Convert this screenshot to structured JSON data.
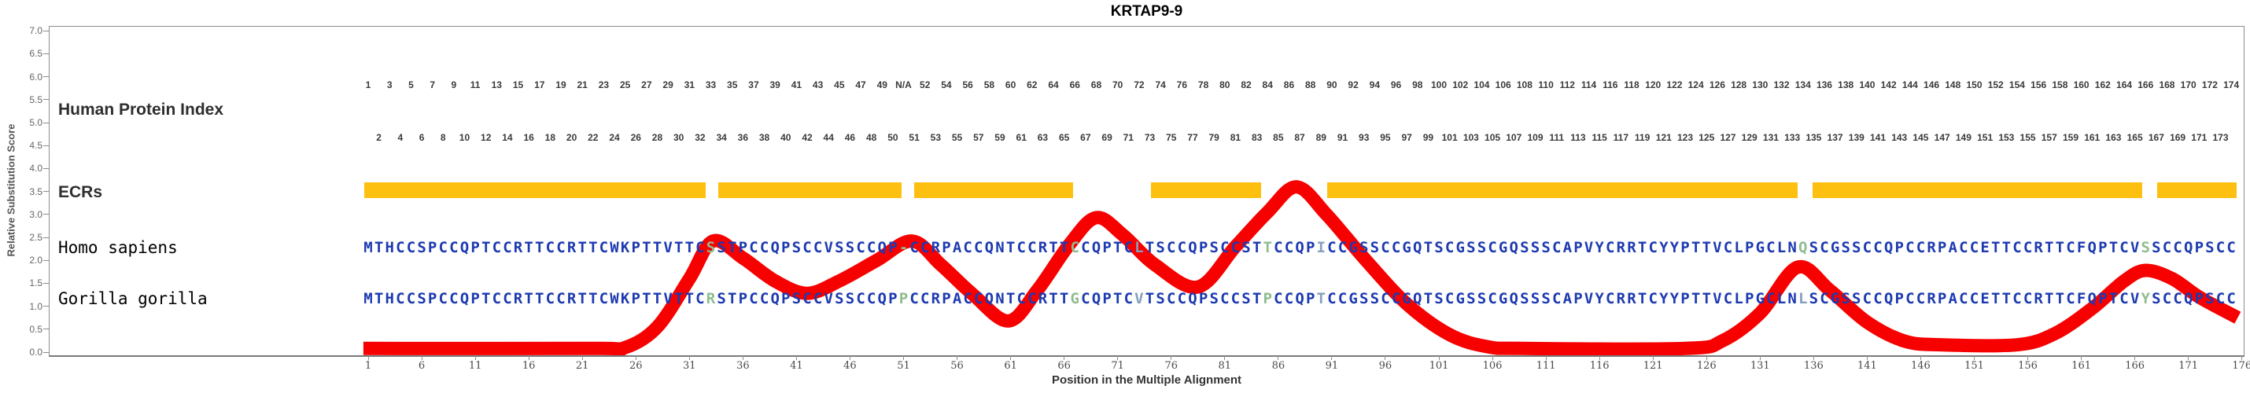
{
  "title": "KRTAP9-9",
  "colors": {
    "residue_blue": "#1d3ab0",
    "mismatch_green": "#8fbc8f",
    "mismatch_slate": "#84a0bd",
    "curve_red": "#f70000",
    "ecr_gold": "#fdc010",
    "axis_gray": "#8c8c8c"
  },
  "y_axis": {
    "label": "Relative Substitution Score",
    "ticks": [
      "7.0",
      "6.5",
      "6.0",
      "5.5",
      "5.0",
      "4.5",
      "4.0",
      "3.5",
      "3.0",
      "2.5",
      "2.0",
      "1.5",
      "1.0",
      "0.5",
      "0.0"
    ],
    "min": 0.0,
    "max": 7.0
  },
  "x_axis": {
    "label": "Position in the Multiple Alignment",
    "ticks": [
      1,
      6,
      11,
      16,
      21,
      26,
      31,
      36,
      41,
      46,
      51,
      56,
      61,
      66,
      71,
      76,
      81,
      86,
      91,
      96,
      101,
      106,
      111,
      116,
      121,
      126,
      131,
      136,
      141,
      146,
      151,
      156,
      161,
      166,
      171,
      176
    ]
  },
  "left_labels": {
    "human_protein_index": "Human Protein Index",
    "ecrs": "ECRs"
  },
  "index_rows": {
    "gap_label": "N/A",
    "gap_column": 51,
    "top": [
      "1",
      "3",
      "5",
      "7",
      "9",
      "11",
      "13",
      "15",
      "17",
      "19",
      "21",
      "23",
      "25",
      "27",
      "29",
      "31",
      "33",
      "35",
      "37",
      "39",
      "41",
      "43",
      "45",
      "47",
      "49",
      "N/A",
      "52",
      "54",
      "56",
      "58",
      "60",
      "62",
      "64",
      "66",
      "68",
      "70",
      "72",
      "74",
      "76",
      "78",
      "80",
      "82",
      "84",
      "86",
      "88",
      "90",
      "92",
      "94",
      "96",
      "98",
      "100",
      "102",
      "104",
      "106",
      "108",
      "110",
      "112",
      "114",
      "116",
      "118",
      "120",
      "122",
      "124",
      "126",
      "128",
      "130",
      "132",
      "134",
      "136",
      "138",
      "140",
      "142",
      "144",
      "146",
      "148",
      "150",
      "152",
      "154",
      "156",
      "158",
      "160",
      "162",
      "164",
      "166",
      "168",
      "170",
      "172",
      "174"
    ],
    "bottom": [
      "2",
      "4",
      "6",
      "8",
      "10",
      "12",
      "14",
      "16",
      "18",
      "20",
      "22",
      "24",
      "26",
      "28",
      "30",
      "32",
      "34",
      "36",
      "38",
      "40",
      "42",
      "44",
      "46",
      "48",
      "50",
      "51",
      "53",
      "55",
      "57",
      "59",
      "61",
      "63",
      "65",
      "67",
      "69",
      "71",
      "73",
      "75",
      "77",
      "79",
      "81",
      "83",
      "85",
      "87",
      "89",
      "91",
      "93",
      "95",
      "97",
      "99",
      "101",
      "103",
      "105",
      "107",
      "109",
      "111",
      "113",
      "115",
      "117",
      "119",
      "121",
      "123",
      "125",
      "127",
      "129",
      "131",
      "133",
      "135",
      "137",
      "139",
      "141",
      "143",
      "145",
      "147",
      "149",
      "151",
      "153",
      "155",
      "157",
      "159",
      "161",
      "163",
      "165",
      "167",
      "169",
      "171",
      "173"
    ]
  },
  "sequences": {
    "species": [
      {
        "name": "Homo sapiens",
        "sequence": "MTHCCSPCCQPTCCRTTCCRTTCWKPTTVTTCSSTPCCQPSCCVSSCCQP-CCRPACCQNTCCRTTCCQPTCLTSCCQPSCCSTTCCQPICCGSSCCGQTSCGSSCGQSSSCAPVYCRRTCYYPTTVCLPGCLNQSCGSSCCQPCCRPACCETTCCRTTCFQPTCVSSCCQPSCC",
        "variants": {
          "33": "green",
          "51": "green",
          "67": "green",
          "73": "slate",
          "85": "green",
          "90": "slate",
          "135": "green",
          "167": "green"
        }
      },
      {
        "name": "Gorilla gorilla",
        "sequence": "MTHCCSPCCQPTCCRTTCCRTTCWKPTTVTTCRSTPCCQPSCCVSSCCQPPCCRPACCQNTCCRTTGCQPTCVTSCCQPSCCSTPCCQPTCCGSSCCGQTSCGSSCGQSSSCAPVYCRRTCYYPTTVCLPGCLNLSCGSSCCQPCCRPACCETTCCRTTCFQPTCVYSCCQPSCC",
        "variants": {
          "33": "green",
          "51": "green",
          "67": "green",
          "73": "slate",
          "85": "green",
          "90": "slate",
          "135": "slate",
          "167": "green"
        }
      }
    ]
  },
  "ecr_bars": [
    {
      "start_col": 0.6,
      "end_col": 32.5
    },
    {
      "start_col": 33.7,
      "end_col": 50.8
    },
    {
      "start_col": 52.0,
      "end_col": 66.8
    },
    {
      "start_col": 74.1,
      "end_col": 84.4
    },
    {
      "start_col": 90.6,
      "end_col": 134.5
    },
    {
      "start_col": 135.9,
      "end_col": 166.7
    },
    {
      "start_col": 168.1,
      "end_col": 175.5
    }
  ],
  "chart_data": {
    "type": "line",
    "title": "KRTAP9-9",
    "xlabel": "Position in the Multiple Alignment",
    "ylabel": "Relative Substitution Score",
    "xlim": [
      1,
      176
    ],
    "ylim": [
      0,
      7
    ],
    "grid": false,
    "series": [
      {
        "name": "relative-substitution-score",
        "points": [
          [
            0.55,
            0.08
          ],
          [
            22,
            0.08
          ],
          [
            25,
            0.1
          ],
          [
            28,
            0.55
          ],
          [
            31,
            1.6
          ],
          [
            33.2,
            2.42
          ],
          [
            36,
            2.05
          ],
          [
            39,
            1.55
          ],
          [
            42,
            1.28
          ],
          [
            45,
            1.55
          ],
          [
            48.5,
            2.0
          ],
          [
            51.8,
            2.42
          ],
          [
            54.5,
            1.9
          ],
          [
            57.5,
            1.25
          ],
          [
            60.8,
            0.68
          ],
          [
            63.5,
            1.35
          ],
          [
            66.5,
            2.35
          ],
          [
            69,
            2.93
          ],
          [
            71.5,
            2.55
          ],
          [
            74.5,
            1.9
          ],
          [
            78.5,
            1.42
          ],
          [
            82,
            2.3
          ],
          [
            85,
            3.05
          ],
          [
            87.7,
            3.6
          ],
          [
            90.5,
            3.0
          ],
          [
            94,
            2.05
          ],
          [
            98,
            1.05
          ],
          [
            102,
            0.38
          ],
          [
            105.5,
            0.12
          ],
          [
            109,
            0.08
          ],
          [
            124,
            0.08
          ],
          [
            127.5,
            0.25
          ],
          [
            131,
            0.85
          ],
          [
            134.5,
            1.85
          ],
          [
            137.5,
            1.35
          ],
          [
            141,
            0.65
          ],
          [
            144.5,
            0.24
          ],
          [
            148,
            0.16
          ],
          [
            155,
            0.16
          ],
          [
            158.5,
            0.4
          ],
          [
            162,
            0.95
          ],
          [
            165,
            1.55
          ],
          [
            167,
            1.78
          ],
          [
            169.5,
            1.6
          ],
          [
            172,
            1.2
          ],
          [
            175.6,
            0.75
          ]
        ]
      }
    ]
  }
}
